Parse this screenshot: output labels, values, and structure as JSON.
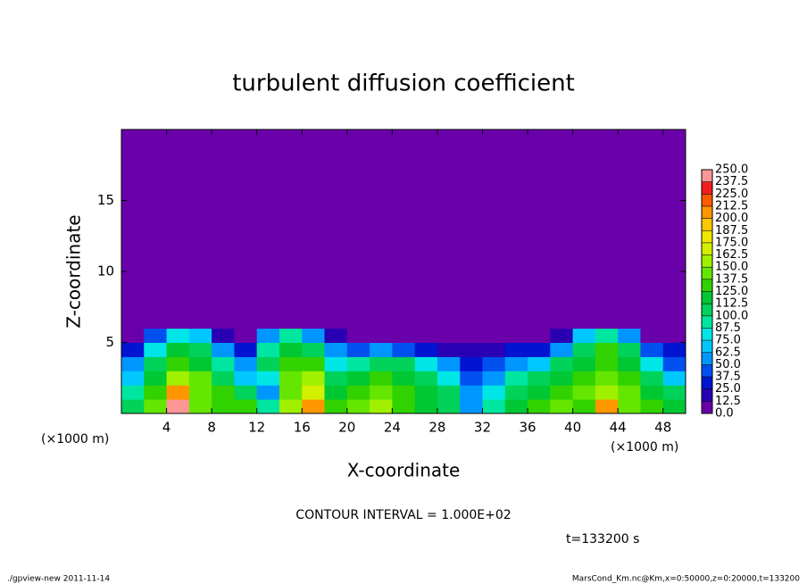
{
  "chart_data": {
    "type": "heatmap",
    "title": "turbulent diffusion coefficient",
    "x_label": "X-coordinate",
    "y_label": "Z-coordinate",
    "x_unit": "(×1000 m)",
    "y_unit": "(×1000 m)",
    "note": "CONTOUR INTERVAL = 1.000E+02",
    "time_label": "t=133200 s",
    "footer_left": "./gpview-new  2011-11-14",
    "footer_right": "MarsCond_Km.nc@Km,x=0:50000,z=0:20000,t=133200",
    "xlim": [
      0,
      50
    ],
    "ylim": [
      0,
      20
    ],
    "xticks": [
      4,
      8,
      12,
      16,
      20,
      24,
      28,
      32,
      36,
      40,
      44,
      48
    ],
    "yticks": [
      5,
      10,
      15
    ],
    "x_edges": [
      0,
      2,
      4,
      6,
      8,
      10,
      12,
      14,
      16,
      18,
      20,
      22,
      24,
      26,
      28,
      30,
      32,
      34,
      36,
      38,
      40,
      42,
      44,
      46,
      48,
      50
    ],
    "y_edges": [
      0,
      1,
      2,
      3,
      4,
      5,
      6,
      20
    ],
    "z": [
      [
        110,
        140,
        250,
        140,
        130,
        130,
        90,
        150,
        210,
        130,
        140,
        150,
        130,
        120,
        110,
        60,
        90,
        120,
        130,
        140,
        130,
        200,
        140,
        130,
        120
      ],
      [
        90,
        130,
        200,
        140,
        130,
        100,
        60,
        140,
        170,
        120,
        130,
        140,
        130,
        120,
        100,
        50,
        80,
        110,
        120,
        130,
        140,
        160,
        140,
        120,
        100
      ],
      [
        70,
        120,
        150,
        140,
        110,
        70,
        80,
        140,
        150,
        100,
        120,
        130,
        120,
        110,
        80,
        40,
        60,
        90,
        110,
        120,
        130,
        140,
        130,
        100,
        70
      ],
      [
        50,
        110,
        130,
        120,
        90,
        50,
        100,
        130,
        130,
        80,
        90,
        110,
        100,
        80,
        50,
        30,
        40,
        60,
        70,
        100,
        120,
        130,
        120,
        80,
        40
      ],
      [
        30,
        80,
        120,
        110,
        60,
        30,
        90,
        120,
        110,
        60,
        40,
        50,
        40,
        30,
        20,
        20,
        20,
        30,
        30,
        60,
        110,
        130,
        100,
        40,
        30
      ],
      [
        10,
        40,
        80,
        70,
        20,
        10,
        50,
        90,
        60,
        20,
        10,
        10,
        5,
        5,
        5,
        5,
        5,
        5,
        5,
        20,
        70,
        90,
        60,
        10,
        5
      ],
      [
        0,
        0,
        0,
        0,
        0,
        0,
        0,
        0,
        0,
        0,
        0,
        0,
        0,
        0,
        0,
        0,
        0,
        0,
        0,
        0,
        0,
        0,
        0,
        0,
        0
      ]
    ],
    "levels": [
      {
        "value": 0,
        "label": "0.0"
      },
      12.5,
      {
        "value": 25,
        "label": "25.0"
      },
      37.5,
      {
        "value": 50,
        "label": "50.0"
      },
      62.5,
      {
        "value": 75,
        "label": "75.0"
      },
      87.5,
      {
        "value": 100,
        "label": "100.0"
      },
      112.5,
      {
        "value": 125,
        "label": "125.0"
      },
      137.5,
      {
        "value": 150,
        "label": "150.0"
      },
      162.5,
      {
        "value": 175,
        "label": "175.0"
      },
      187.5,
      {
        "value": 200,
        "label": "200.0"
      },
      212.5,
      {
        "value": 225,
        "label": "225.0"
      },
      237.5,
      {
        "value": 250,
        "label": "250.0"
      }
    ],
    "colors": [
      "#6a00aa",
      "#2a00b4",
      "#0014d2",
      "#0050f0",
      "#0096ff",
      "#00c8ff",
      "#00e6e6",
      "#00e6a0",
      "#00d25a",
      "#00c832",
      "#32d200",
      "#64e600",
      "#a0f000",
      "#d2f000",
      "#f0e600",
      "#ffc800",
      "#ff9600",
      "#ff5a00",
      "#f01e1e",
      "#ff9696"
    ]
  }
}
